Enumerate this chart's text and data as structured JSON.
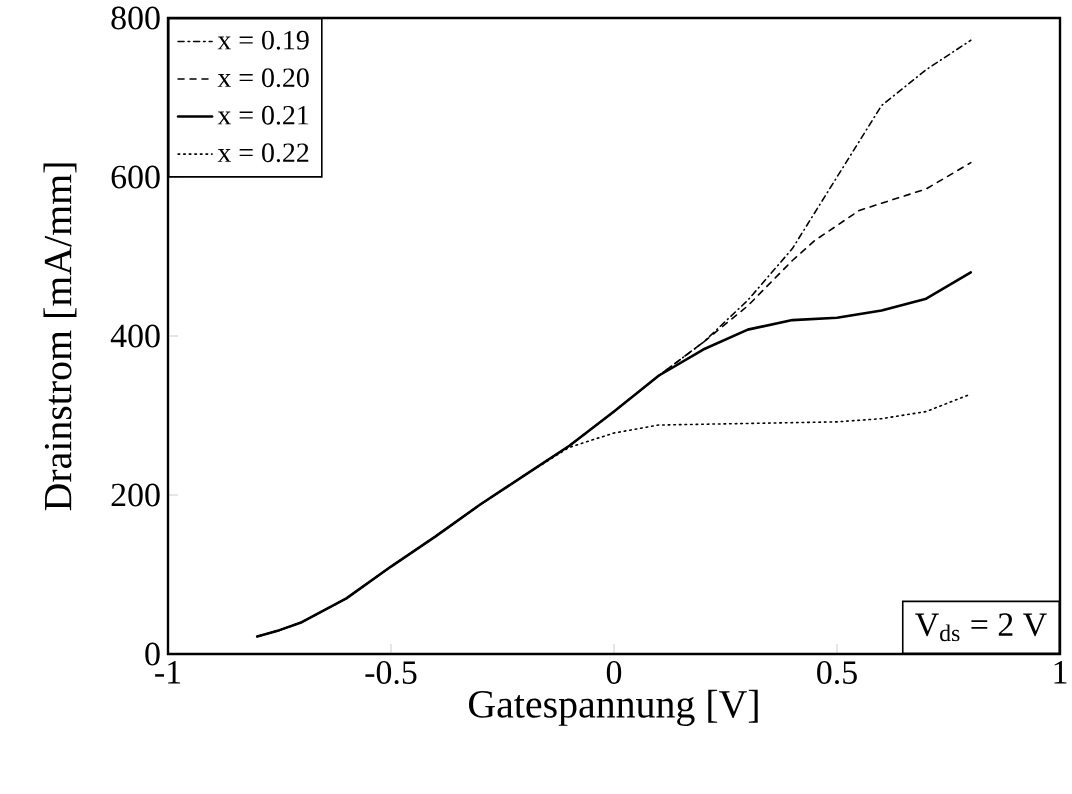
{
  "chart_data": {
    "type": "line",
    "xlabel": "Gatespannung [V]",
    "ylabel": "Drainstrom [mA/mm]",
    "xlim": [
      -1,
      1
    ],
    "ylim": [
      0,
      800
    ],
    "xticks": [
      -1,
      -0.5,
      0,
      0.5,
      1
    ],
    "yticks": [
      0,
      200,
      400,
      600,
      800
    ],
    "legend": "top left",
    "annotations": [
      "V$_{ds}$ = 2 V"
    ],
    "series": [
      {
        "name": "x = 0.19",
        "color": "#000000",
        "line_style": "dashdot",
        "x": [
          -0.8,
          -0.75,
          -0.7,
          -0.6,
          -0.5,
          -0.4,
          -0.3,
          -0.2,
          -0.1,
          0,
          0.1,
          0.2,
          0.3,
          0.4,
          0.5,
          0.6,
          0.7,
          0.8
        ],
        "values": [
          22,
          30,
          40,
          70,
          110,
          148,
          188,
          225,
          262,
          305,
          350,
          392,
          445,
          510,
          600,
          690,
          735,
          772
        ]
      },
      {
        "name": "x = 0.20",
        "color": "#000000",
        "line_style": "dashed",
        "x": [
          -0.8,
          -0.75,
          -0.7,
          -0.6,
          -0.5,
          -0.4,
          -0.3,
          -0.2,
          -0.1,
          0,
          0.1,
          0.2,
          0.3,
          0.4,
          0.45,
          0.55,
          0.7,
          0.8
        ],
        "values": [
          22,
          30,
          40,
          70,
          110,
          148,
          188,
          225,
          262,
          305,
          350,
          392,
          438,
          495,
          520,
          558,
          585,
          618
        ]
      },
      {
        "name": "x = 0.21",
        "color": "#000000",
        "line_style": "solid",
        "x": [
          -0.8,
          -0.75,
          -0.7,
          -0.6,
          -0.5,
          -0.4,
          -0.3,
          -0.2,
          -0.1,
          0,
          0.1,
          0.2,
          0.3,
          0.4,
          0.5,
          0.6,
          0.7,
          0.8
        ],
        "values": [
          22,
          30,
          40,
          70,
          110,
          148,
          188,
          225,
          262,
          305,
          350,
          383,
          408,
          420,
          423,
          432,
          447,
          480
        ]
      },
      {
        "name": "x = 0.22",
        "color": "#000000",
        "line_style": "dotted",
        "x": [
          -0.8,
          -0.75,
          -0.7,
          -0.6,
          -0.5,
          -0.4,
          -0.3,
          -0.2,
          -0.1,
          0,
          0.1,
          0.2,
          0.3,
          0.4,
          0.5,
          0.6,
          0.7,
          0.8
        ],
        "values": [
          22,
          30,
          40,
          70,
          110,
          148,
          188,
          225,
          260,
          278,
          288,
          289,
          290,
          291,
          292,
          296,
          305,
          327
        ]
      }
    ]
  }
}
